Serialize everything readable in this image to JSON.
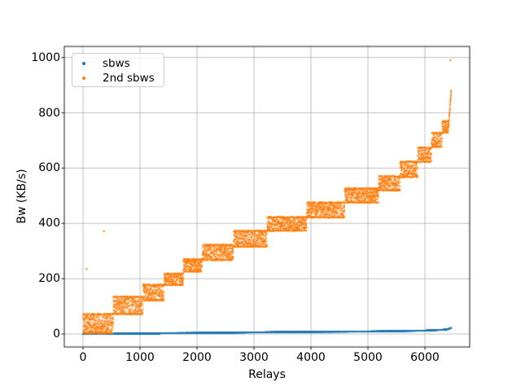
{
  "figure": {
    "background": "#ffffff",
    "text_color": "#000000"
  },
  "chart_data": {
    "type": "scatter",
    "title": "",
    "xlabel": "Relays",
    "ylabel": "Bw (KB/s)",
    "xlim": [
      -329,
      6786
    ],
    "ylim": [
      -47,
      1040
    ],
    "x_ticks": [
      "0",
      "1000",
      "2000",
      "3000",
      "4000",
      "5000",
      "6000"
    ],
    "x_tick_values": [
      0,
      1000,
      2000,
      3000,
      4000,
      5000,
      6000
    ],
    "y_ticks": [
      "0",
      "200",
      "400",
      "600",
      "800",
      "1000"
    ],
    "y_tick_values": [
      0,
      200,
      400,
      600,
      800,
      1000
    ],
    "grid": true,
    "grid_color": "#b0b0b0",
    "spine_color": "#000000",
    "legend": {
      "position": "upper left",
      "border_color": "#cccccc"
    },
    "series": [
      {
        "name": "sbws",
        "color": "#1f77b4",
        "marker_size": 1.5,
        "jitter": 0.7,
        "points_per_x": 1,
        "steps": [
          {
            "x0": 0,
            "x1": 1350,
            "y0": 0.5,
            "y1": 2,
            "mode": "ramp"
          },
          {
            "x0": 1350,
            "x1": 2690,
            "y0": 3,
            "y1": 5,
            "mode": "ramp"
          },
          {
            "x0": 2690,
            "x1": 3380,
            "y0": 5,
            "y1": 7,
            "mode": "ramp"
          },
          {
            "x0": 3380,
            "x1": 4930,
            "y0": 7,
            "y1": 9,
            "mode": "ramp"
          },
          {
            "x0": 4930,
            "x1": 5970,
            "y0": 9,
            "y1": 12,
            "mode": "ramp"
          },
          {
            "x0": 5970,
            "x1": 6380,
            "y0": 12,
            "y1": 16,
            "mode": "ramp"
          },
          {
            "x0": 6380,
            "x1": 6463,
            "y0": 16,
            "y1": 22,
            "mode": "ramp"
          }
        ],
        "outliers": []
      },
      {
        "name": "2nd sbws",
        "color": "#ff7f0e",
        "marker_size": 1.5,
        "jitter": 0,
        "points_per_x": 1,
        "steps": [
          {
            "x0": 0,
            "x1": 530,
            "y0": 2,
            "y1": 74,
            "mode": "band"
          },
          {
            "x0": 0,
            "x1": 420,
            "y0": 0,
            "y1": 28,
            "mode": "band",
            "density": 0.1
          },
          {
            "x0": 530,
            "x1": 1050,
            "y0": 70,
            "y1": 137,
            "mode": "band"
          },
          {
            "x0": 1050,
            "x1": 1420,
            "y0": 120,
            "y1": 180,
            "mode": "band"
          },
          {
            "x0": 1420,
            "x1": 1760,
            "y0": 176,
            "y1": 220,
            "mode": "band"
          },
          {
            "x0": 1760,
            "x1": 2090,
            "y0": 224,
            "y1": 272,
            "mode": "band"
          },
          {
            "x0": 2090,
            "x1": 2640,
            "y0": 266,
            "y1": 324,
            "mode": "band"
          },
          {
            "x0": 2640,
            "x1": 3230,
            "y0": 314,
            "y1": 374,
            "mode": "band"
          },
          {
            "x0": 3230,
            "x1": 3925,
            "y0": 372,
            "y1": 424,
            "mode": "band"
          },
          {
            "x0": 3925,
            "x1": 4590,
            "y0": 420,
            "y1": 477,
            "mode": "band"
          },
          {
            "x0": 4590,
            "x1": 5185,
            "y0": 474,
            "y1": 528,
            "mode": "band"
          },
          {
            "x0": 5185,
            "x1": 5565,
            "y0": 518,
            "y1": 572,
            "mode": "band"
          },
          {
            "x0": 5565,
            "x1": 5875,
            "y0": 566,
            "y1": 625,
            "mode": "band"
          },
          {
            "x0": 5875,
            "x1": 6115,
            "y0": 621,
            "y1": 675,
            "mode": "band"
          },
          {
            "x0": 6115,
            "x1": 6300,
            "y0": 675,
            "y1": 729,
            "mode": "band"
          },
          {
            "x0": 6300,
            "x1": 6420,
            "y0": 726,
            "y1": 771,
            "mode": "band"
          },
          {
            "x0": 6420,
            "x1": 6463,
            "y0": 762,
            "y1": 880,
            "mode": "ramp",
            "jitter": 9
          }
        ],
        "outliers": [
          [
            61,
            235
          ],
          [
            367,
            372
          ],
          [
            6447,
            990
          ]
        ]
      }
    ]
  }
}
